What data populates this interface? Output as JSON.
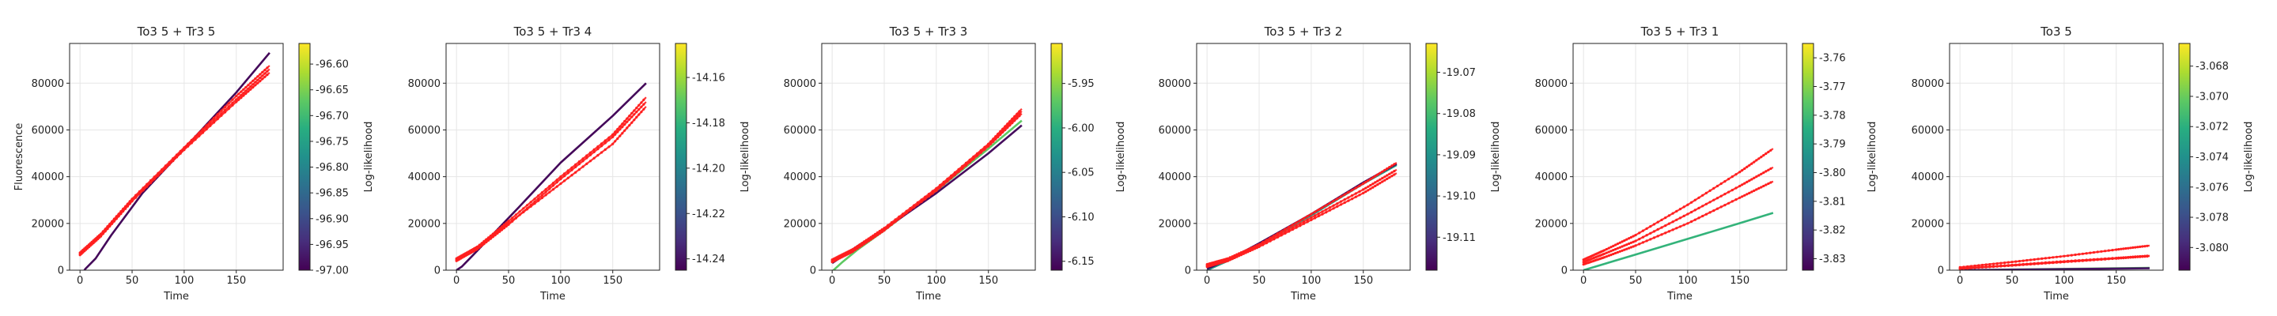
{
  "colors": {
    "data": "#ff1f1f",
    "model_dark": "#2a1a5e",
    "model_olive": "#6e7d2e",
    "grid": "#e6e6e6",
    "axis": "#222222"
  },
  "colormap": "viridis",
  "chart_data": [
    {
      "type": "line",
      "title": "To3 5 + Tr3 5",
      "xlabel": "Time",
      "ylabel": "Fluorescence",
      "xlim": [
        -10,
        195
      ],
      "ylim": [
        0,
        97000
      ],
      "xticks": [
        0,
        50,
        100,
        150
      ],
      "yticks": [
        0,
        20000,
        40000,
        60000,
        80000
      ],
      "grid": true,
      "replicates": [
        {
          "x": [
            0,
            20,
            50,
            100,
            150,
            182
          ],
          "y": [
            7000,
            15000,
            30000,
            52000,
            73000,
            86000
          ]
        },
        {
          "x": [
            0,
            20,
            50,
            100,
            150,
            182
          ],
          "y": [
            7500,
            15500,
            30500,
            52500,
            74500,
            87500
          ]
        },
        {
          "x": [
            0,
            20,
            50,
            100,
            150,
            182
          ],
          "y": [
            6500,
            14500,
            29500,
            51500,
            72000,
            84500
          ]
        }
      ],
      "model_curves": [
        {
          "x": [
            0,
            5,
            15,
            30,
            60,
            100,
            150,
            182
          ],
          "y": [
            -3000,
            500,
            5000,
            15000,
            33000,
            52000,
            76000,
            93000
          ],
          "level": 0.02
        }
      ],
      "colorbar": {
        "label": "Log-likelihood",
        "min": -97.0,
        "max": -96.56,
        "ticks": [
          "-96.60",
          "-96.65",
          "-96.70",
          "-96.75",
          "-96.80",
          "-96.85",
          "-96.90",
          "-96.95",
          "-97.00"
        ],
        "tick_values": [
          -96.6,
          -96.65,
          -96.7,
          -96.75,
          -96.8,
          -96.85,
          -96.9,
          -96.95,
          -97.0
        ]
      }
    },
    {
      "type": "line",
      "title": "To3 5 + Tr3 4",
      "xlabel": "Time",
      "ylabel": "",
      "xlim": [
        -10,
        195
      ],
      "ylim": [
        0,
        97000
      ],
      "xticks": [
        0,
        50,
        100,
        150
      ],
      "yticks": [
        0,
        20000,
        40000,
        60000,
        80000
      ],
      "grid": true,
      "replicates": [
        {
          "x": [
            0,
            20,
            50,
            100,
            150,
            182
          ],
          "y": [
            5000,
            10000,
            21000,
            40000,
            58000,
            74000
          ]
        },
        {
          "x": [
            0,
            20,
            50,
            100,
            150,
            182
          ],
          "y": [
            4500,
            9500,
            20000,
            37000,
            54000,
            70000
          ]
        },
        {
          "x": [
            0,
            20,
            50,
            100,
            150,
            182
          ],
          "y": [
            4000,
            9000,
            19500,
            39000,
            57000,
            72000
          ]
        }
      ],
      "model_curves": [
        {
          "x": [
            0,
            5,
            15,
            30,
            60,
            100,
            150,
            182
          ],
          "y": [
            0,
            1500,
            6000,
            13000,
            27000,
            46000,
            66000,
            80000
          ],
          "level": 0.02
        }
      ],
      "colorbar": {
        "label": "Log-likelihood",
        "min": -14.245,
        "max": -14.145,
        "ticks": [
          "-14.16",
          "-14.18",
          "-14.20",
          "-14.22",
          "-14.24"
        ],
        "tick_values": [
          -14.16,
          -14.18,
          -14.2,
          -14.22,
          -14.24
        ]
      }
    },
    {
      "type": "line",
      "title": "To3 5 + Tr3 3",
      "xlabel": "Time",
      "ylabel": "",
      "xlim": [
        -10,
        195
      ],
      "ylim": [
        0,
        97000
      ],
      "xticks": [
        0,
        50,
        100,
        150
      ],
      "yticks": [
        0,
        20000,
        40000,
        60000,
        80000
      ],
      "grid": true,
      "replicates": [
        {
          "x": [
            0,
            20,
            50,
            100,
            150,
            182
          ],
          "y": [
            4500,
            9000,
            18000,
            35000,
            54000,
            69000
          ]
        },
        {
          "x": [
            0,
            20,
            50,
            100,
            150,
            182
          ],
          "y": [
            4000,
            8500,
            17500,
            34000,
            53000,
            67000
          ]
        },
        {
          "x": [
            0,
            20,
            50,
            100,
            150,
            182
          ],
          "y": [
            3500,
            8000,
            17000,
            34500,
            53500,
            68000
          ]
        }
      ],
      "model_curves": [
        {
          "x": [
            0,
            10,
            25,
            50,
            100,
            150,
            182
          ],
          "y": [
            -500,
            3500,
            9000,
            17000,
            34000,
            52000,
            64000
          ],
          "level": 0.75
        },
        {
          "x": [
            0,
            10,
            25,
            50,
            100,
            150,
            182
          ],
          "y": [
            3000,
            6000,
            10500,
            17500,
            33000,
            50000,
            62000
          ],
          "level": 0.03
        }
      ],
      "colorbar": {
        "label": "Log-likelihood",
        "min": -6.16,
        "max": -5.905,
        "ticks": [
          "-5.95",
          "-6.00",
          "-6.05",
          "-6.10",
          "-6.15"
        ],
        "tick_values": [
          -5.95,
          -6.0,
          -6.05,
          -6.1,
          -6.15
        ]
      }
    },
    {
      "type": "line",
      "title": "To3 5 + Tr3 2",
      "xlabel": "Time",
      "ylabel": "",
      "xlim": [
        -10,
        195
      ],
      "ylim": [
        0,
        97000
      ],
      "xticks": [
        0,
        50,
        100,
        150
      ],
      "yticks": [
        0,
        20000,
        40000,
        60000,
        80000
      ],
      "grid": true,
      "replicates": [
        {
          "x": [
            0,
            20,
            50,
            100,
            150,
            182
          ],
          "y": [
            2500,
            5000,
            11000,
            24000,
            37000,
            46000
          ]
        },
        {
          "x": [
            0,
            20,
            50,
            100,
            150,
            182
          ],
          "y": [
            2000,
            4500,
            10500,
            22500,
            34500,
            43000
          ]
        },
        {
          "x": [
            0,
            20,
            50,
            100,
            150,
            182
          ],
          "y": [
            1500,
            4000,
            10000,
            21500,
            33000,
            41500
          ]
        }
      ],
      "model_curves": [
        {
          "x": [
            0,
            10,
            25,
            50,
            100,
            150,
            182
          ],
          "y": [
            0,
            2000,
            5000,
            11000,
            23500,
            37000,
            45000
          ],
          "level": 0.55
        },
        {
          "x": [
            0,
            10,
            25,
            50,
            100,
            150,
            182
          ],
          "y": [
            500,
            2500,
            5500,
            11500,
            24000,
            37500,
            45500
          ],
          "level": 0.03
        }
      ],
      "colorbar": {
        "label": "Log-likelihood",
        "min": -19.118,
        "max": -19.063,
        "ticks": [
          "-19.07",
          "-19.08",
          "-19.09",
          "-19.10",
          "-19.11"
        ],
        "tick_values": [
          -19.07,
          -19.08,
          -19.09,
          -19.1,
          -19.11
        ]
      }
    },
    {
      "type": "line",
      "title": "To3 5 + Tr3 1",
      "xlabel": "Time",
      "ylabel": "",
      "xlim": [
        -10,
        195
      ],
      "ylim": [
        0,
        97000
      ],
      "xticks": [
        0,
        50,
        100,
        150
      ],
      "yticks": [
        0,
        20000,
        40000,
        60000,
        80000
      ],
      "grid": true,
      "replicates": [
        {
          "x": [
            0,
            20,
            50,
            100,
            150,
            182
          ],
          "y": [
            4500,
            8500,
            15000,
            28000,
            42000,
            52000
          ]
        },
        {
          "x": [
            0,
            20,
            50,
            100,
            150,
            182
          ],
          "y": [
            3500,
            7000,
            12500,
            24000,
            36000,
            44000
          ]
        },
        {
          "x": [
            0,
            20,
            50,
            100,
            150,
            182
          ],
          "y": [
            2500,
            5500,
            10500,
            20000,
            31000,
            38000
          ]
        }
      ],
      "model_curves": [
        {
          "x": [
            0,
            50,
            100,
            150,
            182
          ],
          "y": [
            0,
            6700,
            13400,
            20100,
            24500
          ],
          "level": 0.65
        }
      ],
      "colorbar": {
        "label": "Log-likelihood",
        "min": -3.834,
        "max": -3.755,
        "ticks": [
          "-3.76",
          "-3.77",
          "-3.78",
          "-3.79",
          "-3.80",
          "-3.81",
          "-3.82",
          "-3.83"
        ],
        "tick_values": [
          -3.76,
          -3.77,
          -3.78,
          -3.79,
          -3.8,
          -3.81,
          -3.82,
          -3.83
        ]
      }
    },
    {
      "type": "line",
      "title": "To3 5",
      "xlabel": "Time",
      "ylabel": "",
      "xlim": [
        -10,
        195
      ],
      "ylim": [
        0,
        97000
      ],
      "xticks": [
        0,
        50,
        100,
        150
      ],
      "yticks": [
        0,
        20000,
        40000,
        60000,
        80000
      ],
      "grid": true,
      "replicates": [
        {
          "x": [
            0,
            50,
            100,
            150,
            182
          ],
          "y": [
            1200,
            3500,
            6000,
            8800,
            10500
          ]
        },
        {
          "x": [
            0,
            50,
            100,
            150,
            182
          ],
          "y": [
            700,
            2200,
            3800,
            5200,
            6200
          ]
        },
        {
          "x": [
            0,
            50,
            100,
            150,
            182
          ],
          "y": [
            600,
            2000,
            3500,
            5000,
            6000
          ]
        }
      ],
      "model_curves": [
        {
          "x": [
            0,
            182
          ],
          "y": [
            0,
            1000
          ],
          "level": 0.75
        },
        {
          "x": [
            0,
            182
          ],
          "y": [
            0,
            800
          ],
          "level": 0.05
        }
      ],
      "colorbar": {
        "label": "Log-likelihood",
        "min": -3.0815,
        "max": -3.0665,
        "ticks": [
          "-3.068",
          "-3.070",
          "-3.072",
          "-3.074",
          "-3.076",
          "-3.078",
          "-3.080"
        ],
        "tick_values": [
          -3.068,
          -3.07,
          -3.072,
          -3.074,
          -3.076,
          -3.078,
          -3.08
        ]
      }
    }
  ]
}
